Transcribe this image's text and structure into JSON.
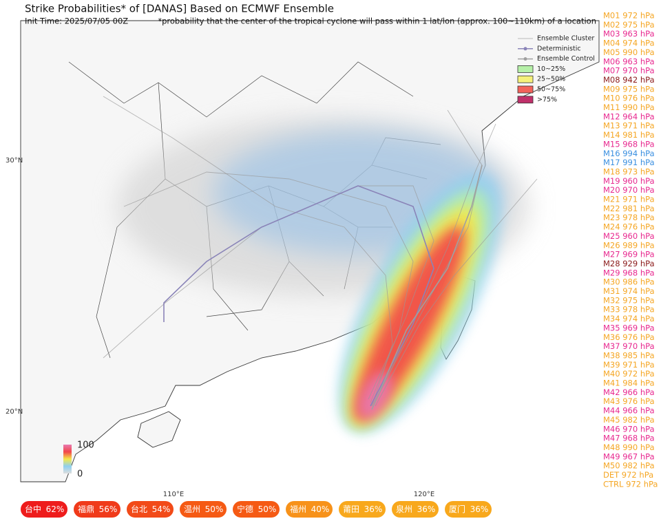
{
  "header": {
    "title": "Strike Probabilities* of [DANAS] Based on ECMWF Ensemble",
    "init_time": "Init Time: 2025/07/05 00Z",
    "note": "*probability that the center of the tropical cyclone will pass within 1 lat/lon (approx. 100~110km) of a location"
  },
  "legend": {
    "items": [
      {
        "label": "Ensemble Cluster",
        "color": "#bbbbbb",
        "kind": "line"
      },
      {
        "label": "Deterministic",
        "color": "#8a84b8",
        "kind": "dot"
      },
      {
        "label": "Ensemble Control",
        "color": "#a0a0a0",
        "kind": "dot"
      },
      {
        "label": "10~25%",
        "color": "#b6f0a8",
        "kind": "box"
      },
      {
        "label": "25~50%",
        "color": "#f5f07a",
        "kind": "box"
      },
      {
        "label": "50~75%",
        "color": "#f2615a",
        "kind": "box"
      },
      {
        "label": ">75%",
        "color": "#c0306a",
        "kind": "box"
      }
    ]
  },
  "axes": {
    "lat_labels": [
      "30°N",
      "20°N"
    ],
    "lon_labels": [
      "110°E",
      "120°E"
    ]
  },
  "colorbar": {
    "top": "100",
    "bottom": "0"
  },
  "members": [
    {
      "label": "M01 972 hPa",
      "color": "#f5a623"
    },
    {
      "label": "M02 975 hPa",
      "color": "#f5a623"
    },
    {
      "label": "M03 963 hPa",
      "color": "#e8288f"
    },
    {
      "label": "M04 974 hPa",
      "color": "#f5a623"
    },
    {
      "label": "M05 990 hPa",
      "color": "#f5a623"
    },
    {
      "label": "M06 963 hPa",
      "color": "#e8288f"
    },
    {
      "label": "M07 970 hPa",
      "color": "#e8288f"
    },
    {
      "label": "M08 942 hPa",
      "color": "#8b1a1a"
    },
    {
      "label": "M09 975 hPa",
      "color": "#f5a623"
    },
    {
      "label": "M10 976 hPa",
      "color": "#f5a623"
    },
    {
      "label": "M11 990 hPa",
      "color": "#f5a623"
    },
    {
      "label": "M12 964 hPa",
      "color": "#e8288f"
    },
    {
      "label": "M13 971 hPa",
      "color": "#f5a623"
    },
    {
      "label": "M14 981 hPa",
      "color": "#f5a623"
    },
    {
      "label": "M15 968 hPa",
      "color": "#e8288f"
    },
    {
      "label": "M16 994 hPa",
      "color": "#3a8fe0"
    },
    {
      "label": "M17 991 hPa",
      "color": "#3a8fe0"
    },
    {
      "label": "M18 973 hPa",
      "color": "#f5a623"
    },
    {
      "label": "M19 960 hPa",
      "color": "#e8288f"
    },
    {
      "label": "M20 970 hPa",
      "color": "#e8288f"
    },
    {
      "label": "M21 971 hPa",
      "color": "#f5a623"
    },
    {
      "label": "M22 981 hPa",
      "color": "#f5a623"
    },
    {
      "label": "M23 978 hPa",
      "color": "#f5a623"
    },
    {
      "label": "M24 976 hPa",
      "color": "#f5a623"
    },
    {
      "label": "M25 960 hPa",
      "color": "#e8288f"
    },
    {
      "label": "M26 989 hPa",
      "color": "#f5a623"
    },
    {
      "label": "M27 969 hPa",
      "color": "#e8288f"
    },
    {
      "label": "M28 929 hPa",
      "color": "#8b1a1a"
    },
    {
      "label": "M29 968 hPa",
      "color": "#e8288f"
    },
    {
      "label": "M30 986 hPa",
      "color": "#f5a623"
    },
    {
      "label": "M31 974 hPa",
      "color": "#f5a623"
    },
    {
      "label": "M32 975 hPa",
      "color": "#f5a623"
    },
    {
      "label": "M33 978 hPa",
      "color": "#f5a623"
    },
    {
      "label": "M34 974 hPa",
      "color": "#f5a623"
    },
    {
      "label": "M35 969 hPa",
      "color": "#e8288f"
    },
    {
      "label": "M36 976 hPa",
      "color": "#f5a623"
    },
    {
      "label": "M37 970 hPa",
      "color": "#e8288f"
    },
    {
      "label": "M38 985 hPa",
      "color": "#f5a623"
    },
    {
      "label": "M39 971 hPa",
      "color": "#f5a623"
    },
    {
      "label": "M40 972 hPa",
      "color": "#f5a623"
    },
    {
      "label": "M41 984 hPa",
      "color": "#f5a623"
    },
    {
      "label": "M42 966 hPa",
      "color": "#e8288f"
    },
    {
      "label": "M43 976 hPa",
      "color": "#f5a623"
    },
    {
      "label": "M44 966 hPa",
      "color": "#e8288f"
    },
    {
      "label": "M45 982 hPa",
      "color": "#f5a623"
    },
    {
      "label": "M46 970 hPa",
      "color": "#e8288f"
    },
    {
      "label": "M47 968 hPa",
      "color": "#e8288f"
    },
    {
      "label": "M48 990 hPa",
      "color": "#f5a623"
    },
    {
      "label": "M49 967 hPa",
      "color": "#e8288f"
    },
    {
      "label": "M50 982 hPa",
      "color": "#f5a623"
    },
    {
      "label": "DET 972 hPa",
      "color": "#f5a623"
    },
    {
      "label": "CTRL 972 hPa",
      "color": "#f5a623"
    }
  ],
  "cities": [
    {
      "name": "台中",
      "prob": "62%",
      "color": "#ee1c1c"
    },
    {
      "name": "福鼎",
      "prob": "56%",
      "color": "#f03a1a"
    },
    {
      "name": "台北",
      "prob": "54%",
      "color": "#f24a18"
    },
    {
      "name": "温州",
      "prob": "50%",
      "color": "#f55a14"
    },
    {
      "name": "宁德",
      "prob": "50%",
      "color": "#f55a14"
    },
    {
      "name": "福州",
      "prob": "40%",
      "color": "#f7921a"
    },
    {
      "name": "莆田",
      "prob": "36%",
      "color": "#f8a81c"
    },
    {
      "name": "泉州",
      "prob": "36%",
      "color": "#f8a81c"
    },
    {
      "name": "厦门",
      "prob": "36%",
      "color": "#f8a81c"
    }
  ]
}
